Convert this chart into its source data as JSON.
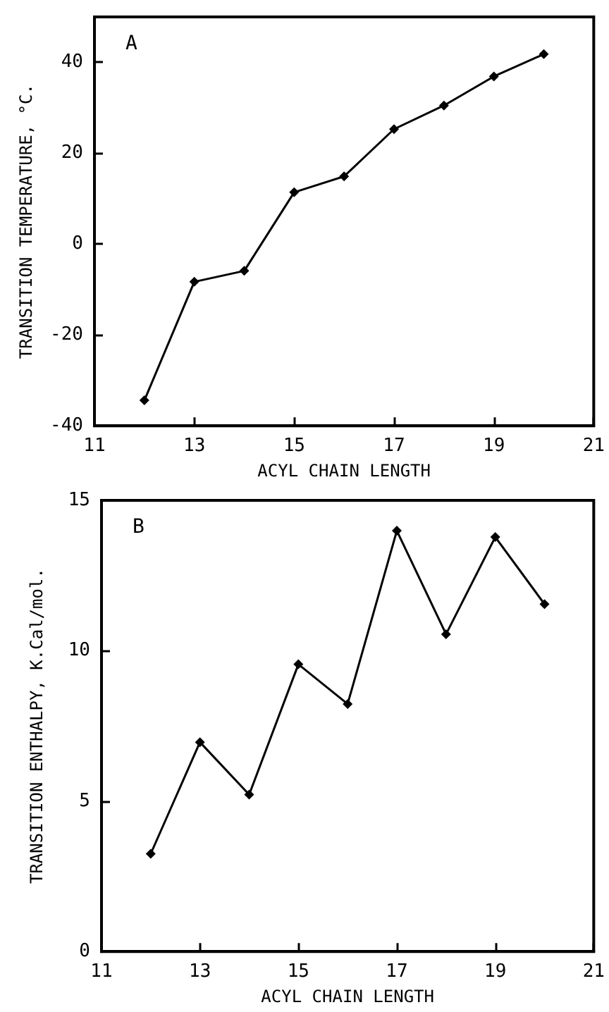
{
  "chart_data": [
    {
      "type": "line",
      "annotations": [
        "A"
      ],
      "xlabel": "ACYL CHAIN LENGTH",
      "ylabel": "TRANSITION TEMPERATURE, °C.",
      "x": [
        12,
        13,
        14,
        15,
        16,
        17,
        18,
        19,
        20
      ],
      "series": [
        {
          "color": "#000000",
          "values": [
            -34.4,
            -8.3,
            -5.9,
            11.4,
            14.9,
            25.3,
            30.5,
            36.9,
            41.8
          ]
        }
      ],
      "xlim": [
        11,
        21
      ],
      "xticks": [
        11,
        13,
        15,
        17,
        19,
        21
      ],
      "ylim": [
        -40,
        50
      ],
      "yticks": [
        -40,
        -20,
        0,
        20,
        40
      ],
      "grid": false,
      "marker": "diamond",
      "line_style": "solid"
    },
    {
      "type": "line",
      "annotations": [
        "B"
      ],
      "xlabel": "ACYL CHAIN LENGTH",
      "ylabel": "TRANSITION ENTHALPY, K.Cal/mol.",
      "x": [
        12,
        13,
        14,
        15,
        16,
        17,
        18,
        19,
        20
      ],
      "series": [
        {
          "color": "#000000",
          "values": [
            3.25,
            6.96,
            5.22,
            9.55,
            8.23,
            13.99,
            10.55,
            13.78,
            11.55
          ]
        }
      ],
      "xlim": [
        11,
        21
      ],
      "xticks": [
        11,
        13,
        15,
        17,
        19,
        21
      ],
      "ylim": [
        0,
        15
      ],
      "yticks": [
        0,
        5,
        10,
        15
      ],
      "grid": false,
      "marker": "diamond",
      "line_style": "solid"
    }
  ]
}
